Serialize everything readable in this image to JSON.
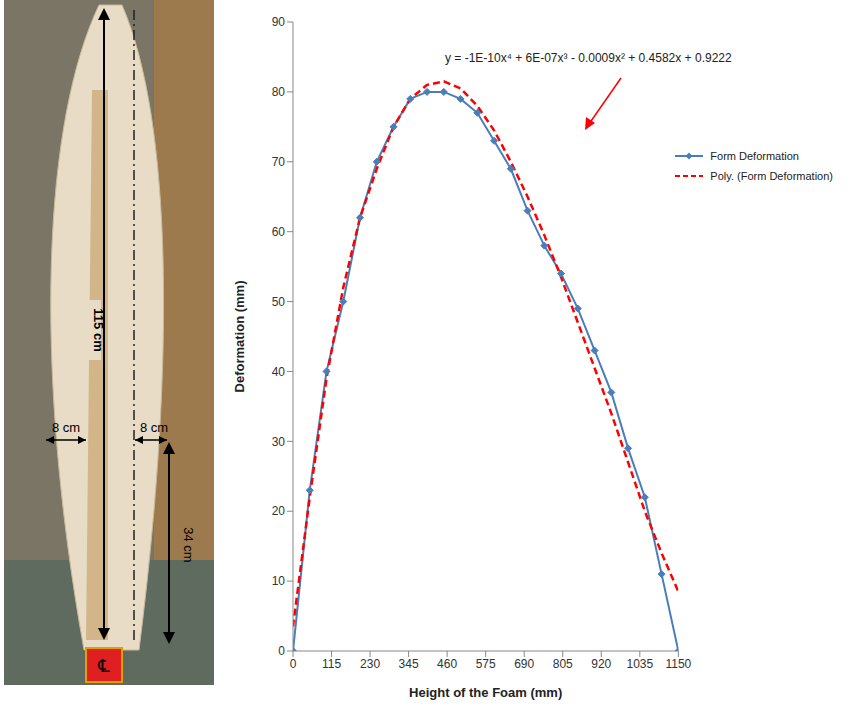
{
  "chart_data": {
    "type": "line",
    "x_label": "Height of the Foam (mm)",
    "y_label": "Deformation (mm)",
    "annotations": [
      "y = -1E-10x⁴ + 6E-07x³ - 0.0009x² + 0.4582x + 0.9222"
    ],
    "x": [
      0,
      50,
      100,
      150,
      200,
      250,
      300,
      350,
      400,
      450,
      500,
      550,
      600,
      650,
      700,
      750,
      800,
      850,
      900,
      950,
      1000,
      1050,
      1100,
      1150
    ],
    "series": [
      {
        "name": "Form Deformation",
        "color": "#4a7ebb",
        "marker": "diamond",
        "line_style": "solid",
        "values": [
          0,
          23,
          40,
          50,
          62,
          70,
          75,
          79,
          80,
          80,
          79,
          77,
          73,
          69,
          63,
          58,
          54,
          49,
          43,
          37,
          29,
          22,
          11,
          0
        ]
      },
      {
        "name": "Poly. (Form Deformation)",
        "color": "#ff0000",
        "marker": "none",
        "line_style": "dashed",
        "values": [
          3.5,
          22,
          39,
          52,
          62,
          69,
          75,
          79,
          81,
          81.5,
          80.5,
          78,
          74.5,
          70,
          65,
          59.5,
          53.5,
          47,
          40.5,
          34,
          27,
          20,
          14,
          8.5
        ]
      }
    ],
    "xlim": [
      0,
      1150
    ],
    "xticks": [
      0,
      115,
      230,
      345,
      460,
      575,
      690,
      805,
      920,
      1035,
      1150
    ],
    "ylim": [
      0,
      90
    ],
    "yticks": [
      0,
      10,
      20,
      30,
      40,
      50,
      60,
      70,
      80,
      90
    ],
    "grid": false,
    "legend": "upper right"
  },
  "photo_labels": {
    "length": "115 cm",
    "left_width": "8 cm",
    "right_width": "8 cm",
    "base_height": "34 cm",
    "centerline": "℄"
  }
}
